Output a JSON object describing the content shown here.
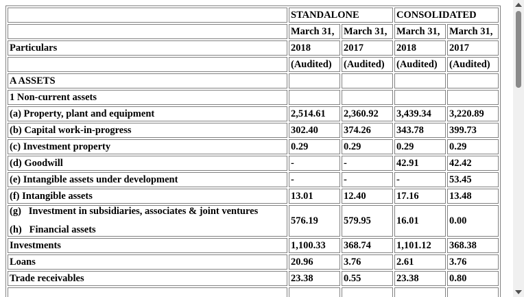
{
  "table": {
    "header": {
      "standalone": "STANDALONE",
      "consolidated": "CONSOLIDATED",
      "particulars": "Particulars",
      "dates": [
        {
          "month": "March 31,",
          "year": "2018"
        },
        {
          "month": "March 31,",
          "year": "2017"
        },
        {
          "month": "March 31,",
          "year": "2018"
        },
        {
          "month": "March 31,",
          "year": "2017"
        }
      ],
      "audited": [
        "(Audited)",
        "(Audited)",
        "(Audited)",
        "(Audited)"
      ]
    },
    "rows": [
      {
        "label": "A ASSETS",
        "values": [
          "",
          "",
          "",
          ""
        ]
      },
      {
        "label": "1 Non-current assets",
        "values": [
          "",
          "",
          "",
          ""
        ]
      },
      {
        "label": "(a) Property, plant and equipment",
        "values": [
          "2,514.61",
          "2,360.92",
          "3,439.34",
          "3,220.89"
        ]
      },
      {
        "label": "(b) Capital work-in-progress",
        "values": [
          "302.40",
          "374.26",
          "343.78",
          "399.73"
        ]
      },
      {
        "label": "(c) Investment property",
        "values": [
          "0.29",
          "0.29",
          "0.29",
          "0.29"
        ]
      },
      {
        "label": "(d) Goodwill",
        "values": [
          "-",
          "-",
          "42.91",
          "42.42"
        ]
      },
      {
        "label": "(e) Intangible assets under development",
        "values": [
          "-",
          "-",
          "-",
          "53.45"
        ]
      },
      {
        "label": "(f) Intangible assets",
        "values": [
          "13.01",
          "12.40",
          "17.16",
          "13.48"
        ]
      },
      {
        "label": "(g)   Investment in subsidiaries, associates & joint ventures",
        "label2": "(h)   Financial assets",
        "values": [
          "576.19",
          "579.95",
          "16.01",
          "0.00"
        ]
      },
      {
        "label": "Investments",
        "values": [
          "1,100.33",
          "368.74",
          "1,101.12",
          "368.38"
        ]
      },
      {
        "label": "Loans",
        "values": [
          "20.96",
          "3.76",
          "2.61",
          "3.76"
        ]
      },
      {
        "label": "Trade receivables",
        "values": [
          "23.38",
          "0.55",
          "23.38",
          "0.80"
        ]
      },
      {
        "label": "",
        "values": [
          "",
          "",
          "",
          ""
        ]
      }
    ]
  }
}
